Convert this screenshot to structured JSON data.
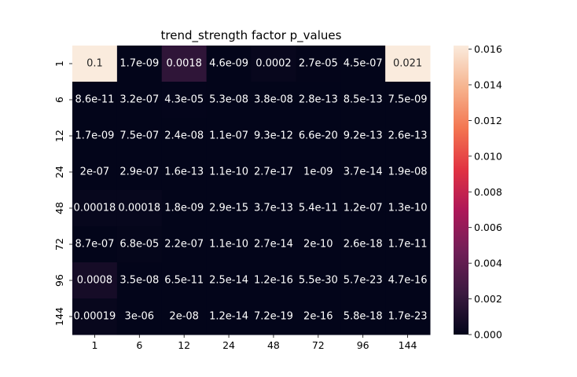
{
  "chart_data": {
    "type": "heatmap",
    "title": "trend_strength factor p_values",
    "xlabel": "",
    "ylabel": "",
    "x_labels": [
      "1",
      "6",
      "12",
      "24",
      "48",
      "72",
      "96",
      "144"
    ],
    "y_labels": [
      "1",
      "6",
      "12",
      "24",
      "48",
      "72",
      "96",
      "144"
    ],
    "annotations": [
      [
        "0.1",
        "1.7e-09",
        "0.0018",
        "4.6e-09",
        "0.0002",
        "2.7e-05",
        "4.5e-07",
        "0.021"
      ],
      [
        "8.6e-11",
        "3.2e-07",
        "4.3e-05",
        "5.3e-08",
        "3.8e-08",
        "2.8e-13",
        "8.5e-13",
        "7.5e-09"
      ],
      [
        "1.7e-09",
        "7.5e-07",
        "2.4e-08",
        "1.1e-07",
        "9.3e-12",
        "6.6e-20",
        "9.2e-13",
        "2.6e-13"
      ],
      [
        "2e-07",
        "2.9e-07",
        "1.6e-13",
        "1.1e-10",
        "2.7e-17",
        "1e-09",
        "3.7e-14",
        "1.9e-08"
      ],
      [
        "0.00018",
        "0.00018",
        "1.8e-09",
        "2.9e-15",
        "3.7e-13",
        "5.4e-11",
        "1.2e-07",
        "1.3e-10"
      ],
      [
        "8.7e-07",
        "6.8e-05",
        "2.2e-07",
        "1.1e-10",
        "2.7e-14",
        "2e-10",
        "2.6e-18",
        "1.7e-11"
      ],
      [
        "0.0008",
        "3.5e-08",
        "6.5e-11",
        "2.5e-14",
        "1.2e-16",
        "5.5e-30",
        "5.7e-23",
        "4.7e-16"
      ],
      [
        "0.00019",
        "3e-06",
        "2e-08",
        "1.2e-14",
        "7.2e-19",
        "2e-16",
        "5.8e-18",
        "1.7e-23"
      ]
    ],
    "values": [
      [
        0.1,
        1.7e-09,
        0.0018,
        4.6e-09,
        0.0002,
        2.7e-05,
        4.5e-07,
        0.021
      ],
      [
        8.6e-11,
        3.2e-07,
        4.3e-05,
        5.3e-08,
        3.8e-08,
        2.8e-13,
        8.5e-13,
        7.5e-09
      ],
      [
        1.7e-09,
        7.5e-07,
        2.4e-08,
        1.1e-07,
        9.3e-12,
        6.6e-20,
        9.2e-13,
        2.6e-13
      ],
      [
        2e-07,
        2.9e-07,
        1.6e-13,
        1.1e-10,
        2.7e-17,
        1e-09,
        3.7e-14,
        1.9e-08
      ],
      [
        0.00018,
        0.00018,
        1.8e-09,
        2.9e-15,
        3.7e-13,
        5.4e-11,
        1.2e-07,
        1.3e-10
      ],
      [
        8.7e-07,
        6.8e-05,
        2.2e-07,
        1.1e-10,
        2.7e-14,
        2e-10,
        2.6e-18,
        1.7e-11
      ],
      [
        0.0008,
        3.5e-08,
        6.5e-11,
        2.5e-14,
        1.2e-16,
        5.5e-30,
        5.7e-23,
        4.7e-16
      ],
      [
        0.00019,
        3e-06,
        2e-08,
        1.2e-14,
        7.2e-19,
        2e-16,
        5.8e-18,
        1.7e-23
      ]
    ],
    "colorbar": {
      "vmin": 0.0,
      "vmax": 0.0162,
      "ticks": [
        "0.000",
        "0.002",
        "0.004",
        "0.006",
        "0.008",
        "0.010",
        "0.012",
        "0.014",
        "0.016"
      ],
      "colormap": "rocket",
      "colormap_stops": [
        "#03051a",
        "#3b1a40",
        "#701f57",
        "#ad1759",
        "#e13342",
        "#f37651",
        "#f6b48f",
        "#faebdd"
      ]
    },
    "text_colors": {
      "on_dark": "#ffffff",
      "on_light": "#262626"
    }
  }
}
